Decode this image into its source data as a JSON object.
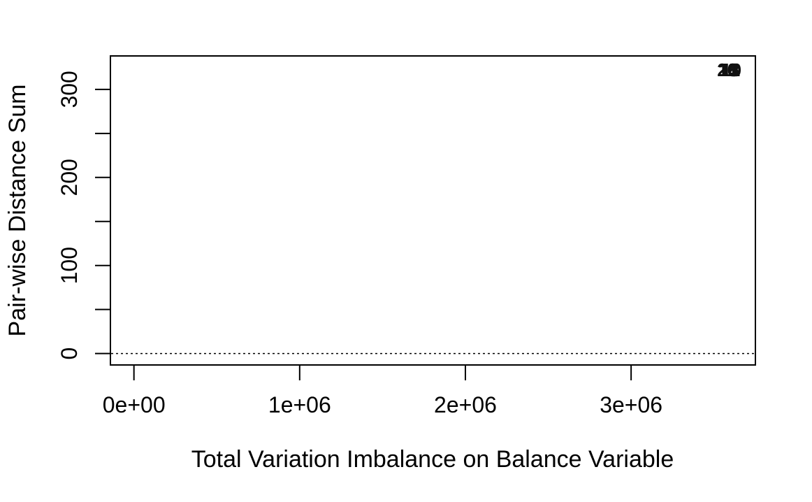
{
  "chart_data": {
    "type": "scatter",
    "title": "",
    "xlabel": "Total Variation Imbalance on Balance Variable",
    "ylabel": "Pair-wise Distance Sum",
    "xlim": [
      -142000,
      3750000
    ],
    "ylim": [
      -13,
      338
    ],
    "x_ticks": [
      {
        "value": 0,
        "label": "0e+00"
      },
      {
        "value": 1000000,
        "label": "1e+06"
      },
      {
        "value": 2000000,
        "label": "2e+06"
      },
      {
        "value": 3000000,
        "label": "3e+06"
      }
    ],
    "y_ticks": [
      {
        "value": 0,
        "label": "0"
      },
      {
        "value": 50,
        "label": ""
      },
      {
        "value": 100,
        "label": "100"
      },
      {
        "value": 150,
        "label": ""
      },
      {
        "value": 200,
        "label": "200"
      },
      {
        "value": 250,
        "label": ""
      },
      {
        "value": 300,
        "label": "300"
      }
    ],
    "reference_line": {
      "y": 0,
      "style": "dotted"
    },
    "grid": false,
    "legend": "none",
    "point_color": "#111111",
    "points": [
      {
        "x": 3580000,
        "y": 322,
        "label": "20"
      },
      {
        "x": 3585000,
        "y": 322,
        "label": "18"
      },
      {
        "x": 3590000,
        "y": 322,
        "label": "15"
      },
      {
        "x": 3595000,
        "y": 322,
        "label": "13"
      },
      {
        "x": 3600000,
        "y": 322,
        "label": "11"
      },
      {
        "x": 3605000,
        "y": 322,
        "label": "10"
      }
    ]
  }
}
